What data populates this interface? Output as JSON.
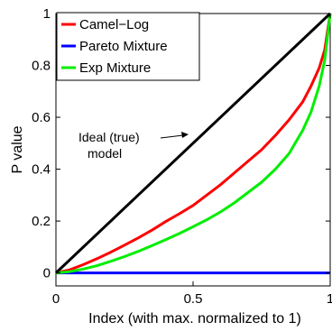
{
  "chart_data": {
    "type": "line",
    "title": "",
    "xlabel": "Index (with max. normalized to 1)",
    "ylabel": "P value",
    "xlim": [
      0,
      1
    ],
    "ylim": [
      -0.05,
      1
    ],
    "xticks": [
      0,
      0.5,
      1
    ],
    "xtick_labels": [
      "0",
      "0.5",
      "1"
    ],
    "yticks": [
      0,
      0.2,
      0.4,
      0.6,
      0.8,
      1
    ],
    "ytick_labels": [
      "0",
      "0.2",
      "0.4",
      "0.6",
      "0.8",
      "1"
    ],
    "grid": false,
    "legend_position": "top-left",
    "series": [
      {
        "name": "Camel−Log",
        "color": "#ff0000",
        "x": [
          0,
          0.05,
          0.1,
          0.15,
          0.2,
          0.25,
          0.3,
          0.35,
          0.4,
          0.45,
          0.5,
          0.55,
          0.6,
          0.65,
          0.7,
          0.75,
          0.8,
          0.85,
          0.9,
          0.93,
          0.96,
          0.98,
          1.0
        ],
        "y": [
          0,
          0.012,
          0.032,
          0.055,
          0.08,
          0.107,
          0.135,
          0.165,
          0.198,
          0.228,
          0.26,
          0.3,
          0.34,
          0.385,
          0.43,
          0.475,
          0.53,
          0.59,
          0.66,
          0.72,
          0.79,
          0.86,
          1.0
        ]
      },
      {
        "name": "Pareto Mixture",
        "color": "#0000ff",
        "x": [
          0,
          1
        ],
        "y": [
          0,
          0
        ]
      },
      {
        "name": "Exp Mixture",
        "color": "#00ee00",
        "x": [
          0,
          0.05,
          0.1,
          0.15,
          0.2,
          0.25,
          0.3,
          0.35,
          0.4,
          0.45,
          0.5,
          0.55,
          0.6,
          0.65,
          0.7,
          0.75,
          0.8,
          0.85,
          0.9,
          0.93,
          0.96,
          0.98,
          1.0
        ],
        "y": [
          0,
          0.005,
          0.015,
          0.028,
          0.045,
          0.063,
          0.083,
          0.105,
          0.128,
          0.152,
          0.178,
          0.205,
          0.235,
          0.27,
          0.31,
          0.35,
          0.4,
          0.46,
          0.55,
          0.62,
          0.72,
          0.82,
          1.0
        ]
      },
      {
        "name": "Ideal",
        "color": "#000000",
        "x": [
          0,
          1
        ],
        "y": [
          0,
          1
        ]
      }
    ],
    "annotations": [
      {
        "text_lines": [
          "Ideal (true)",
          "model"
        ]
      }
    ]
  }
}
